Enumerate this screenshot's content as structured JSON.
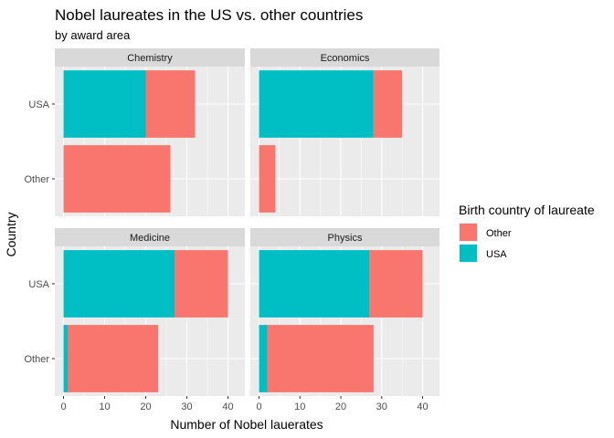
{
  "chart_data": {
    "type": "bar",
    "orientation": "horizontal",
    "stacked": true,
    "title": "Nobel laureates in the US vs. other countries",
    "subtitle": "by award area",
    "xlabel": "Number of Nobel lauerates",
    "ylabel": "Country",
    "xlim": [
      0,
      42
    ],
    "x_ticks": [
      "0",
      "10",
      "20",
      "30",
      "40"
    ],
    "categories": [
      "USA",
      "Other"
    ],
    "grid": true,
    "legend": {
      "title": "Birth country of laureate",
      "placement": "right",
      "entries": [
        {
          "name": "Other",
          "color": "#F8766D"
        },
        {
          "name": "USA",
          "color": "#00BFC4"
        }
      ]
    },
    "facets": [
      {
        "name": "Chemistry",
        "bars": [
          {
            "category": "USA",
            "segments": [
              {
                "series": "USA",
                "value": 20
              },
              {
                "series": "Other",
                "value": 12
              }
            ]
          },
          {
            "category": "Other",
            "segments": [
              {
                "series": "USA",
                "value": 0
              },
              {
                "series": "Other",
                "value": 26
              }
            ]
          }
        ]
      },
      {
        "name": "Economics",
        "bars": [
          {
            "category": "USA",
            "segments": [
              {
                "series": "USA",
                "value": 28
              },
              {
                "series": "Other",
                "value": 7
              }
            ]
          },
          {
            "category": "Other",
            "segments": [
              {
                "series": "USA",
                "value": 0
              },
              {
                "series": "Other",
                "value": 4
              }
            ]
          }
        ]
      },
      {
        "name": "Medicine",
        "bars": [
          {
            "category": "USA",
            "segments": [
              {
                "series": "USA",
                "value": 27
              },
              {
                "series": "Other",
                "value": 13
              }
            ]
          },
          {
            "category": "Other",
            "segments": [
              {
                "series": "USA",
                "value": 1
              },
              {
                "series": "Other",
                "value": 22
              }
            ]
          }
        ]
      },
      {
        "name": "Physics",
        "bars": [
          {
            "category": "USA",
            "segments": [
              {
                "series": "USA",
                "value": 27
              },
              {
                "series": "Other",
                "value": 13
              }
            ]
          },
          {
            "category": "Other",
            "segments": [
              {
                "series": "USA",
                "value": 2
              },
              {
                "series": "Other",
                "value": 26
              }
            ]
          }
        ]
      }
    ]
  }
}
